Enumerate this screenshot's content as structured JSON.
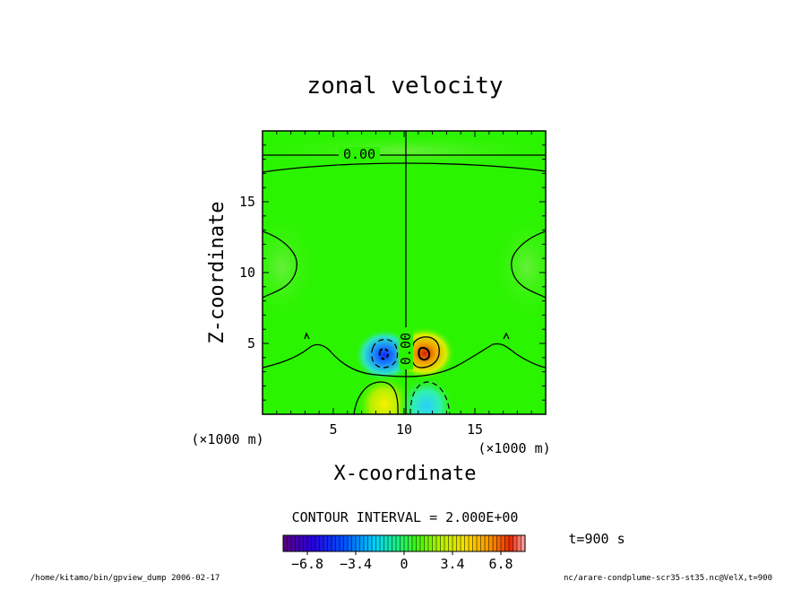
{
  "chart_data": {
    "type": "contour",
    "title": "zonal velocity",
    "xlabel": "X-coordinate",
    "ylabel": "Z-coordinate",
    "x_unit": "(×1000 m)",
    "y_unit": "(×1000 m)",
    "xlim": [
      0,
      20
    ],
    "ylim": [
      0,
      20
    ],
    "x_ticks": [
      5,
      10,
      15
    ],
    "y_ticks": [
      5,
      10,
      15
    ],
    "contour_label": "0.00",
    "contour_interval_text": "CONTOUR INTERVAL = 2.000E+00",
    "colorbar": {
      "range": [
        -8.5,
        8.5
      ],
      "ticks": [
        "−6.8",
        "−3.4",
        "0",
        "3.4",
        "6.8"
      ],
      "tick_values": [
        -6.8,
        -3.4,
        0,
        3.4,
        6.8
      ]
    },
    "time_label": "t=900 s",
    "features": [
      {
        "kind": "min",
        "x": 8.6,
        "z": 4.2,
        "value": -6
      },
      {
        "kind": "max",
        "x": 11.3,
        "z": 4.3,
        "value": 6
      },
      {
        "kind": "max",
        "x": 8.6,
        "z": 1.1,
        "value": 4
      },
      {
        "kind": "min",
        "x": 11.6,
        "z": 1.1,
        "value": -4
      }
    ]
  },
  "footer": {
    "left": "/home/kitamo/bin/gpview_dump  2006-02-17",
    "right": "nc/arare-condplume-scr35-st35.nc@VelX,t=900"
  },
  "colors": {
    "background": "#2bf400",
    "frame": "#000000"
  }
}
